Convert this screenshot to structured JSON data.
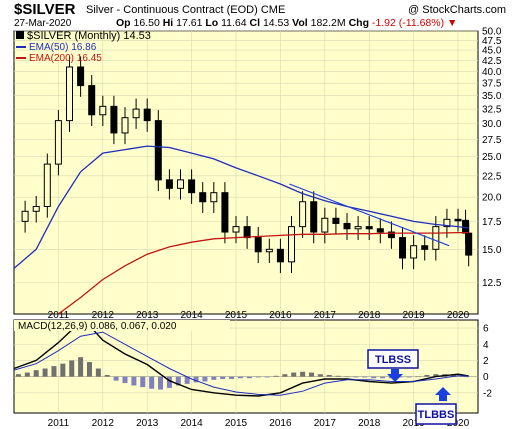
{
  "header": {
    "symbol": "$SILVER",
    "description": "Silver - Continuous Contract (EOD)",
    "exchange": "CME",
    "copyright": "@ StockCharts.com",
    "date": "27-Mar-2020",
    "open_label": "Op",
    "open": "16.50",
    "high_label": "Hi",
    "high": "17.61",
    "low_label": "Lo",
    "low": "11.64",
    "close_label": "Cl",
    "close": "14.53",
    "volume_label": "Vol",
    "volume": "182.2M",
    "change_label": "Chg",
    "change": "-1.92 (-11.68%)",
    "down_arrow": "▼"
  },
  "legend": {
    "price": "$SILVER (Monthly) 14.53",
    "ema50": "EMA(50) 16.86",
    "ema200": "EMA(200) 16.45",
    "macd": "MACD(12,26,9) 0.086, 0.067, 0.020"
  },
  "annotations": {
    "tlbss": "TLBSS",
    "tlbbs": "TLBBS"
  },
  "colors": {
    "panel_bg": "#ffffcc",
    "ema50": "#1f2dbd",
    "ema200": "#c41414",
    "candle": "#000000",
    "histogram": "#8080c0",
    "annotation_box": "#1010a0",
    "trendline": "#2040e0"
  },
  "chart_data": [
    {
      "type": "line",
      "title": "$SILVER (Monthly) 14.53",
      "x_ticks": [
        "2011",
        "2012",
        "2013",
        "2014",
        "2015",
        "2016",
        "2017",
        "2018",
        "2019",
        "2020"
      ],
      "y_ticks": [
        12.5,
        15.0,
        17.5,
        20.0,
        22.5,
        25.0,
        27.5,
        30.0,
        32.5,
        35.0,
        37.5,
        40.0,
        42.5,
        45.0,
        47.5,
        50.0
      ],
      "y_scale": "log",
      "ylim": [
        10.5,
        50
      ],
      "series": [
        {
          "name": "$SILVER (Monthly) 14.53",
          "style": "candles",
          "x": [
            2010.0,
            2010.25,
            2010.5,
            2010.75,
            2011.0,
            2011.25,
            2011.5,
            2011.75,
            2012.0,
            2012.25,
            2012.5,
            2012.75,
            2013.0,
            2013.25,
            2013.5,
            2013.75,
            2014.0,
            2014.25,
            2014.5,
            2014.75,
            2015.0,
            2015.25,
            2015.5,
            2015.75,
            2016.0,
            2016.25,
            2016.5,
            2016.75,
            2017.0,
            2017.25,
            2017.5,
            2017.75,
            2018.0,
            2018.25,
            2018.5,
            2018.75,
            2019.0,
            2019.25,
            2019.5,
            2019.75,
            2020.0,
            2020.17,
            2020.24
          ],
          "values": [
            17.5,
            18.5,
            19.0,
            24.0,
            30.5,
            41.0,
            37.0,
            31.5,
            33.0,
            28.5,
            31.0,
            32.5,
            30.5,
            22.0,
            21.0,
            22.0,
            20.5,
            19.5,
            20.5,
            16.5,
            17.0,
            16.0,
            14.8,
            15.0,
            14.0,
            17.0,
            19.5,
            16.5,
            17.8,
            17.3,
            16.8,
            17.0,
            16.8,
            16.5,
            16.0,
            14.3,
            15.3,
            15.0,
            17.0,
            17.7,
            17.6,
            16.4,
            14.53
          ]
        },
        {
          "name": "EMA(50) 16.86",
          "x": [
            2010.0,
            2010.5,
            2011.0,
            2011.5,
            2012.0,
            2012.5,
            2013.0,
            2013.5,
            2014.0,
            2014.5,
            2015.0,
            2015.5,
            2016.0,
            2016.5,
            2017.0,
            2017.5,
            2018.0,
            2018.5,
            2019.0,
            2019.5,
            2020.0,
            2020.24
          ],
          "values": [
            13.5,
            15.0,
            19.0,
            23.0,
            25.5,
            26.0,
            26.5,
            26.3,
            25.5,
            24.7,
            23.5,
            22.5,
            21.5,
            20.4,
            19.6,
            19.0,
            18.5,
            18.0,
            17.5,
            17.2,
            17.0,
            16.86
          ]
        },
        {
          "name": "EMA(200) 16.45",
          "x": [
            2011.0,
            2011.5,
            2012.0,
            2012.5,
            2013.0,
            2013.5,
            2014.0,
            2014.5,
            2015.0,
            2015.5,
            2016.0,
            2016.5,
            2017.0,
            2017.5,
            2018.0,
            2018.5,
            2019.0,
            2019.5,
            2020.0,
            2020.24
          ],
          "values": [
            10.5,
            11.5,
            12.7,
            13.7,
            14.6,
            15.2,
            15.6,
            15.9,
            16.0,
            16.1,
            16.2,
            16.3,
            16.3,
            16.35,
            16.35,
            16.4,
            16.4,
            16.4,
            16.45,
            16.45
          ]
        },
        {
          "name": "trendline",
          "x": [
            2016.2,
            2019.8
          ],
          "values": [
            21.5,
            15.3
          ]
        }
      ]
    },
    {
      "type": "line",
      "title": "MACD(12,26,9) 0.086, 0.067, 0.020",
      "x_ticks": [
        "2011",
        "2012",
        "2013",
        "2014",
        "2015",
        "2016",
        "2017",
        "2018",
        "2019",
        "2020"
      ],
      "y_ticks": [
        -2,
        0,
        2,
        4,
        6
      ],
      "ylim": [
        -4.5,
        7
      ],
      "series": [
        {
          "name": "MACD",
          "x": [
            2010.0,
            2010.5,
            2011.0,
            2011.5,
            2011.75,
            2012.0,
            2012.5,
            2013.0,
            2013.5,
            2014.0,
            2014.5,
            2015.0,
            2015.5,
            2016.0,
            2016.5,
            2017.0,
            2017.5,
            2018.0,
            2018.5,
            2019.0,
            2019.5,
            2020.0,
            2020.24
          ],
          "values": [
            1.0,
            2.0,
            4.2,
            6.8,
            6.0,
            4.5,
            2.8,
            1.5,
            -0.5,
            -1.6,
            -2.0,
            -2.3,
            -2.4,
            -2.0,
            -0.8,
            -0.3,
            -0.3,
            -0.6,
            -0.8,
            -0.6,
            0.0,
            0.3,
            0.086
          ]
        },
        {
          "name": "Signal",
          "x": [
            2010.0,
            2010.5,
            2011.0,
            2011.5,
            2012.0,
            2012.5,
            2013.0,
            2013.5,
            2014.0,
            2014.5,
            2015.0,
            2015.5,
            2016.0,
            2016.5,
            2017.0,
            2017.5,
            2018.0,
            2018.5,
            2019.0,
            2019.5,
            2020.0,
            2020.24
          ],
          "values": [
            0.8,
            1.6,
            3.2,
            5.0,
            5.5,
            4.0,
            2.5,
            1.0,
            -0.3,
            -1.3,
            -1.9,
            -2.2,
            -2.3,
            -1.8,
            -0.8,
            -0.4,
            -0.4,
            -0.6,
            -0.6,
            -0.3,
            0.1,
            0.067
          ]
        },
        {
          "name": "Histogram",
          "style": "bars",
          "x": [
            2010.1,
            2010.3,
            2010.5,
            2010.7,
            2010.9,
            2011.1,
            2011.3,
            2011.5,
            2011.7,
            2011.9,
            2012.1,
            2012.3,
            2012.5,
            2012.7,
            2012.9,
            2013.1,
            2013.3,
            2013.5,
            2013.7,
            2013.9,
            2014.1,
            2014.3,
            2014.5,
            2014.7,
            2014.9,
            2015.1,
            2015.3,
            2015.5,
            2015.7,
            2015.9,
            2016.1,
            2016.3,
            2016.5,
            2016.7,
            2016.9,
            2017.1,
            2017.3,
            2017.5,
            2017.7,
            2017.9,
            2018.1,
            2018.3,
            2018.5,
            2018.7,
            2018.9,
            2019.1,
            2019.3,
            2019.5,
            2019.7,
            2019.9,
            2020.1,
            2020.2
          ],
          "values": [
            0.3,
            0.5,
            0.8,
            1.0,
            1.3,
            1.6,
            2.0,
            2.4,
            1.8,
            1.0,
            0.2,
            -0.5,
            -0.8,
            -1.1,
            -1.3,
            -1.5,
            -1.6,
            -1.4,
            -1.1,
            -0.9,
            -0.7,
            -0.6,
            -0.4,
            -0.3,
            -0.3,
            -0.2,
            -0.2,
            -0.1,
            -0.1,
            0.1,
            0.3,
            0.5,
            0.6,
            0.5,
            0.3,
            0.2,
            0.1,
            0.0,
            -0.1,
            -0.1,
            -0.2,
            -0.2,
            -0.2,
            -0.1,
            -0.1,
            0.0,
            0.2,
            0.3,
            0.3,
            0.2,
            0.1,
            0.0
          ]
        }
      ]
    }
  ]
}
